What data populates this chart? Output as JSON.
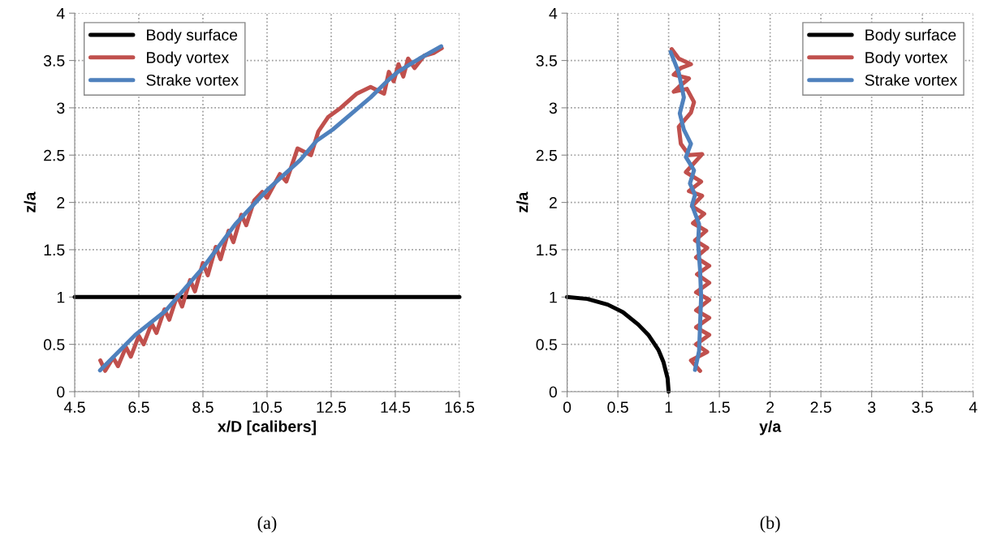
{
  "chart_data": [
    {
      "type": "line",
      "xlabel": "x/D [calibers]",
      "ylabel": "z/a",
      "xlim": [
        4.5,
        16.5
      ],
      "xticks": [
        4.5,
        6.5,
        8.5,
        10.5,
        12.5,
        14.5,
        16.5
      ],
      "ylim": [
        0,
        4
      ],
      "yticks": [
        0,
        0.5,
        1,
        1.5,
        2,
        2.5,
        3,
        3.5,
        4
      ],
      "grid": true,
      "legend": "top left",
      "annotations": [
        "(a)"
      ],
      "series": [
        {
          "name": "Body surface",
          "color": "#000000",
          "x": [
            4.5,
            16.5
          ],
          "values": [
            1,
            1
          ]
        },
        {
          "name": "Body vortex",
          "color": "#c0504d",
          "x": [
            5.3,
            5.45,
            5.7,
            5.85,
            6.1,
            6.25,
            6.5,
            6.65,
            6.9,
            7.05,
            7.3,
            7.45,
            7.7,
            7.85,
            8.1,
            8.25,
            8.5,
            8.65,
            8.9,
            9.05,
            9.3,
            9.45,
            9.7,
            9.85,
            10.1,
            10.35,
            10.5,
            10.9,
            11.1,
            11.45,
            11.87,
            12.1,
            12.4,
            12.8,
            13.3,
            13.73,
            14.15,
            14.3,
            14.45,
            14.6,
            14.75,
            14.9,
            15.1,
            15.4,
            15.7,
            15.95
          ],
          "values": [
            0.33,
            0.22,
            0.36,
            0.27,
            0.47,
            0.37,
            0.59,
            0.5,
            0.72,
            0.62,
            0.87,
            0.76,
            1.02,
            0.9,
            1.18,
            1.06,
            1.36,
            1.23,
            1.53,
            1.4,
            1.7,
            1.58,
            1.87,
            1.76,
            2.02,
            2.11,
            2.05,
            2.3,
            2.22,
            2.57,
            2.5,
            2.75,
            2.9,
            3.0,
            3.15,
            3.22,
            3.15,
            3.38,
            3.28,
            3.46,
            3.33,
            3.52,
            3.42,
            3.55,
            3.58,
            3.63
          ]
        },
        {
          "name": "Strake vortex",
          "color": "#4f81bd",
          "x": [
            5.29,
            6.39,
            7.32,
            8.5,
            9.51,
            10.53,
            11.54,
            12.04,
            12.55,
            13.73,
            14.24,
            14.58,
            15.25,
            15.93
          ],
          "values": [
            0.225,
            0.6,
            0.85,
            1.31,
            1.77,
            2.14,
            2.45,
            2.65,
            2.77,
            3.11,
            3.28,
            3.38,
            3.52,
            3.65
          ]
        }
      ]
    },
    {
      "type": "line",
      "xlabel": "y/a",
      "ylabel": "z/a",
      "xlim": [
        0,
        4
      ],
      "xticks": [
        0,
        0.5,
        1,
        1.5,
        2,
        2.5,
        3,
        3.5,
        4
      ],
      "ylim": [
        0,
        4
      ],
      "yticks": [
        0,
        0.5,
        1,
        1.5,
        2,
        2.5,
        3,
        3.5,
        4
      ],
      "grid": true,
      "legend": "top right",
      "annotations": [
        "(b)"
      ],
      "series": [
        {
          "name": "Body surface",
          "color": "#000000",
          "x": [
            0,
            0.2,
            0.4,
            0.55,
            0.7,
            0.8,
            0.9,
            0.95,
            0.99,
            1.0
          ],
          "values": [
            1,
            0.98,
            0.92,
            0.84,
            0.71,
            0.6,
            0.44,
            0.31,
            0.14,
            0
          ]
        },
        {
          "name": "Body vortex",
          "color": "#c0504d",
          "x": [
            1.31,
            1.22,
            1.38,
            1.27,
            1.4,
            1.27,
            1.4,
            1.27,
            1.4,
            1.27,
            1.4,
            1.28,
            1.4,
            1.27,
            1.38,
            1.26,
            1.37,
            1.24,
            1.35,
            1.23,
            1.33,
            1.2,
            1.32,
            1.17,
            1.33,
            1.2,
            1.12,
            1.1,
            1.22,
            1.25,
            1.18,
            1.05,
            1.1,
            1.2,
            1.05,
            1.12,
            1.22,
            1.1,
            1.03
          ],
          "values": [
            0.22,
            0.33,
            0.42,
            0.5,
            0.6,
            0.68,
            0.78,
            0.86,
            0.97,
            1.05,
            1.15,
            1.24,
            1.33,
            1.42,
            1.52,
            1.6,
            1.7,
            1.78,
            1.88,
            1.96,
            2.07,
            2.12,
            2.22,
            2.32,
            2.51,
            2.5,
            2.62,
            2.8,
            2.95,
            3.06,
            3.2,
            3.17,
            3.22,
            3.31,
            3.35,
            3.42,
            3.46,
            3.52,
            3.62
          ]
        },
        {
          "name": "Strake vortex",
          "color": "#4f81bd",
          "x": [
            1.26,
            1.3,
            1.31,
            1.32,
            1.31,
            1.29,
            1.3,
            1.23,
            1.26,
            1.21,
            1.25,
            1.17,
            1.22,
            1.15,
            1.11,
            1.15,
            1.1,
            1.02
          ],
          "values": [
            0.23,
            0.43,
            0.71,
            1.0,
            1.28,
            1.57,
            1.77,
            1.97,
            2.08,
            2.2,
            2.34,
            2.48,
            2.62,
            2.77,
            2.94,
            3.11,
            3.37,
            3.59
          ]
        }
      ]
    }
  ]
}
